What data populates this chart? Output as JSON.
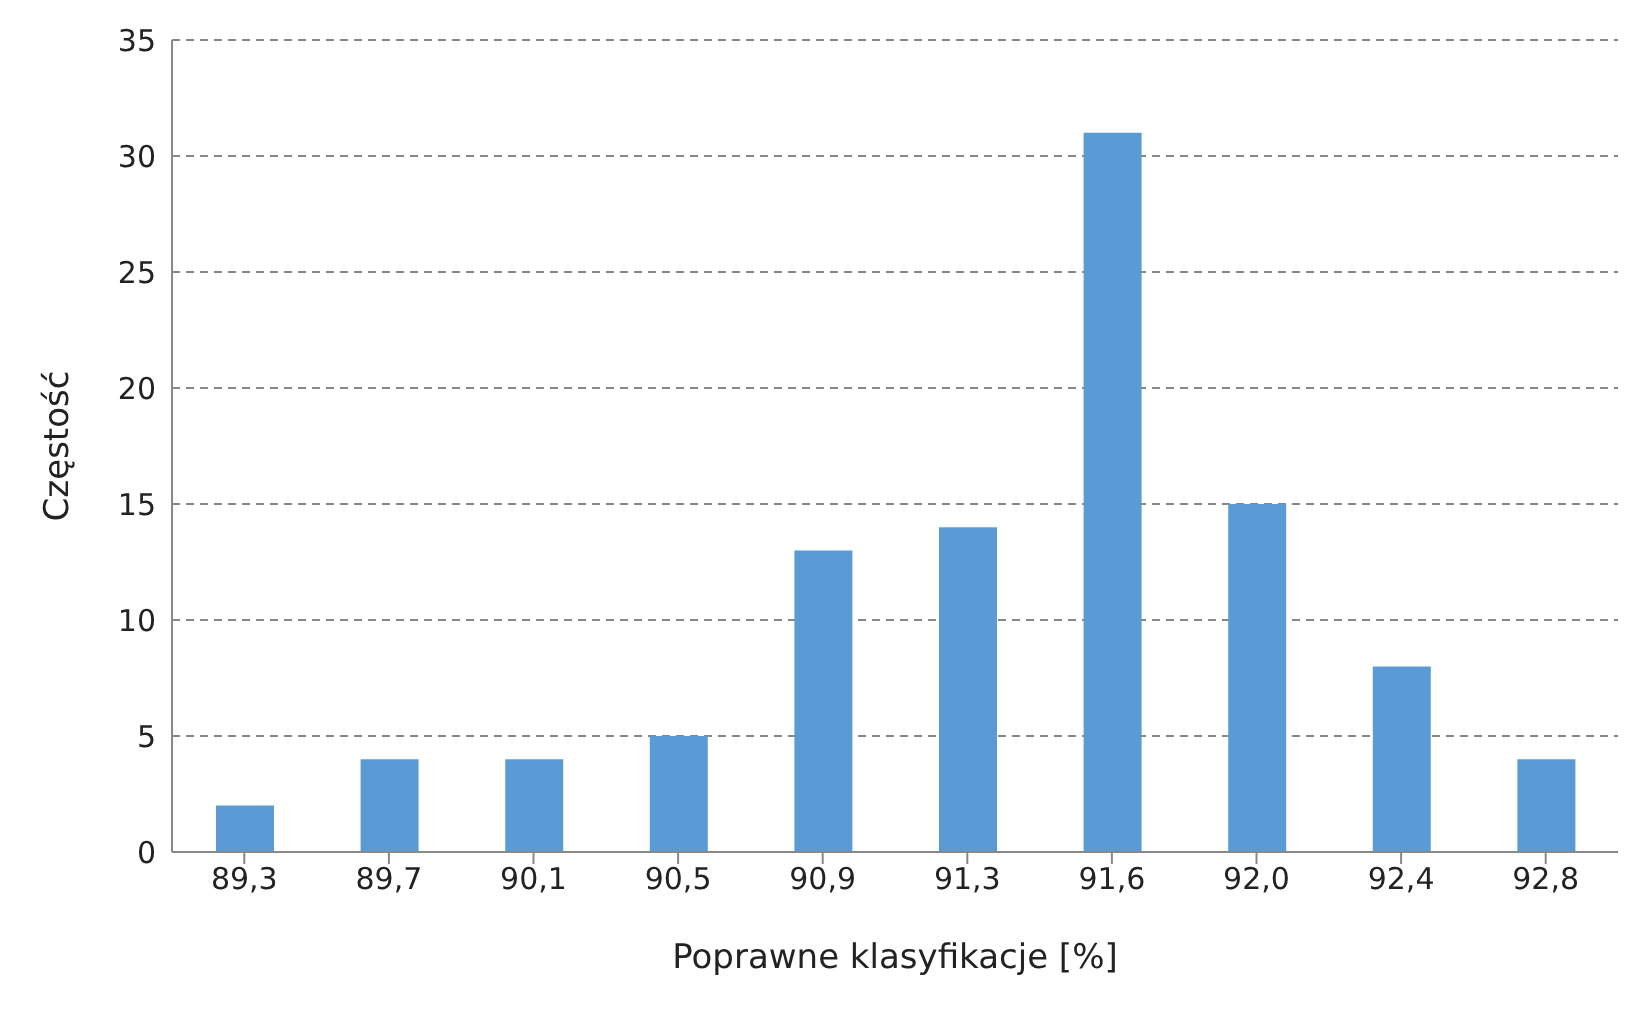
{
  "chart_data": {
    "type": "bar",
    "xlabel": "Poprawne klasyfikacje [%]",
    "ylabel": "Częstość",
    "categories": [
      "89,3",
      "89,7",
      "90,1",
      "90,5",
      "90,9",
      "91,3",
      "91,6",
      "92,0",
      "92,4",
      "92,8"
    ],
    "values": [
      2,
      4,
      4,
      5,
      13,
      14,
      31,
      15,
      8,
      4
    ],
    "color": "#5b9bd5",
    "ylim": [
      0,
      35
    ],
    "yticks": [
      0,
      5,
      10,
      15,
      20,
      25,
      30,
      35
    ],
    "grid": "y",
    "legend": false
  }
}
